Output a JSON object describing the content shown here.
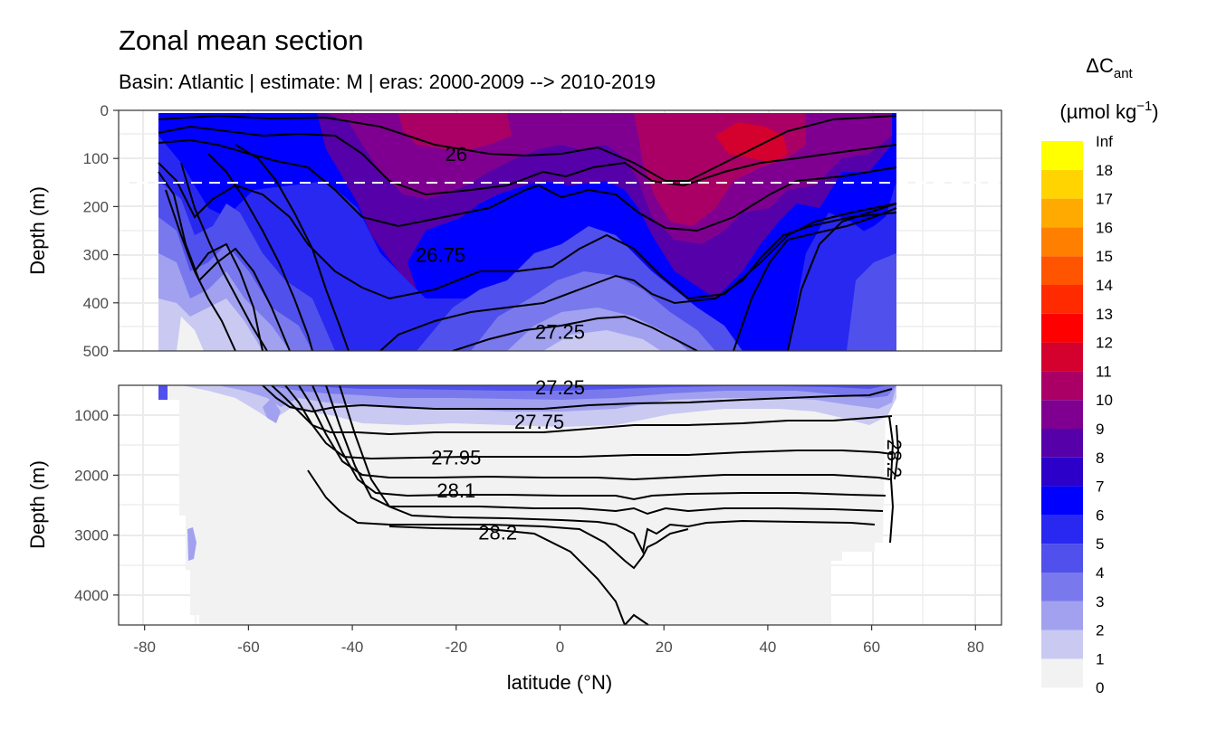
{
  "chart_data": {
    "type": "heatmap",
    "title": "Zonal mean section",
    "subtitle": "Basin: Atlantic | estimate: M  | eras: 2000-2009 --> 2010-2019",
    "xlabel": "latitude (°N)",
    "ylabel": "Depth (m)",
    "xlim": [
      -85,
      85
    ],
    "x_ticks": [
      -80,
      -60,
      -40,
      -20,
      0,
      20,
      40,
      60,
      80
    ],
    "x_tick_labels": [
      "-80",
      "-60",
      "-40",
      "-20",
      "0",
      "20",
      "40",
      "60",
      "80"
    ],
    "panels": [
      {
        "name": "upper",
        "ylim": [
          0,
          500
        ],
        "y_ticks": [
          0,
          100,
          200,
          300,
          400,
          500
        ],
        "y_tick_labels": [
          "0",
          "100",
          "200",
          "300",
          "400",
          "500"
        ],
        "reference_depth": 150,
        "contour_labels": [
          {
            "text": "26",
            "lat": -20,
            "depth": 90
          },
          {
            "text": "26.75",
            "lat": -23,
            "depth": 300
          },
          {
            "text": "27.25",
            "lat": 0,
            "depth": 460
          }
        ]
      },
      {
        "name": "lower",
        "ylim": [
          500,
          4500
        ],
        "y_ticks": [
          1000,
          2000,
          3000,
          4000
        ],
        "y_tick_labels": [
          "1000",
          "2000",
          "3000",
          "4000"
        ],
        "contour_labels": [
          {
            "text": "27.25",
            "lat": 0,
            "depth": 500
          },
          {
            "text": "27.75",
            "lat": -4,
            "depth": 1100
          },
          {
            "text": "27.95",
            "lat": -20,
            "depth": 1700
          },
          {
            "text": "28.1",
            "lat": -20,
            "depth": 2250
          },
          {
            "text": "28.2",
            "lat": -12,
            "depth": 2950
          },
          {
            "text": "28.2",
            "lat": 63,
            "depth": 1600
          }
        ]
      }
    ],
    "legend": {
      "title": "ΔC",
      "title_sub": "ant",
      "unit": "(µmol kg",
      "unit_sup": "−1",
      "unit_close": ")",
      "position": "right",
      "bins": [
        {
          "label": "0",
          "color": "#f2f2f2"
        },
        {
          "label": "1",
          "color": "#c9c9f2"
        },
        {
          "label": "2",
          "color": "#a1a1ef"
        },
        {
          "label": "3",
          "color": "#7979ed"
        },
        {
          "label": "4",
          "color": "#5050ec"
        },
        {
          "label": "5",
          "color": "#2828f0"
        },
        {
          "label": "6",
          "color": "#0000ff"
        },
        {
          "label": "7",
          "color": "#2c00c8"
        },
        {
          "label": "8",
          "color": "#5500a8"
        },
        {
          "label": "9",
          "color": "#7f0090"
        },
        {
          "label": "10",
          "color": "#aa0066"
        },
        {
          "label": "11",
          "color": "#d4002d"
        },
        {
          "label": "12",
          "color": "#ff0000"
        },
        {
          "label": "13",
          "color": "#ff2a00"
        },
        {
          "label": "14",
          "color": "#ff5500"
        },
        {
          "label": "15",
          "color": "#ff7f00"
        },
        {
          "label": "16",
          "color": "#ffaa00"
        },
        {
          "label": "17",
          "color": "#ffd400"
        },
        {
          "label": "18",
          "color": "#ffff00"
        },
        {
          "label": "Inf",
          "color": ""
        }
      ]
    }
  }
}
